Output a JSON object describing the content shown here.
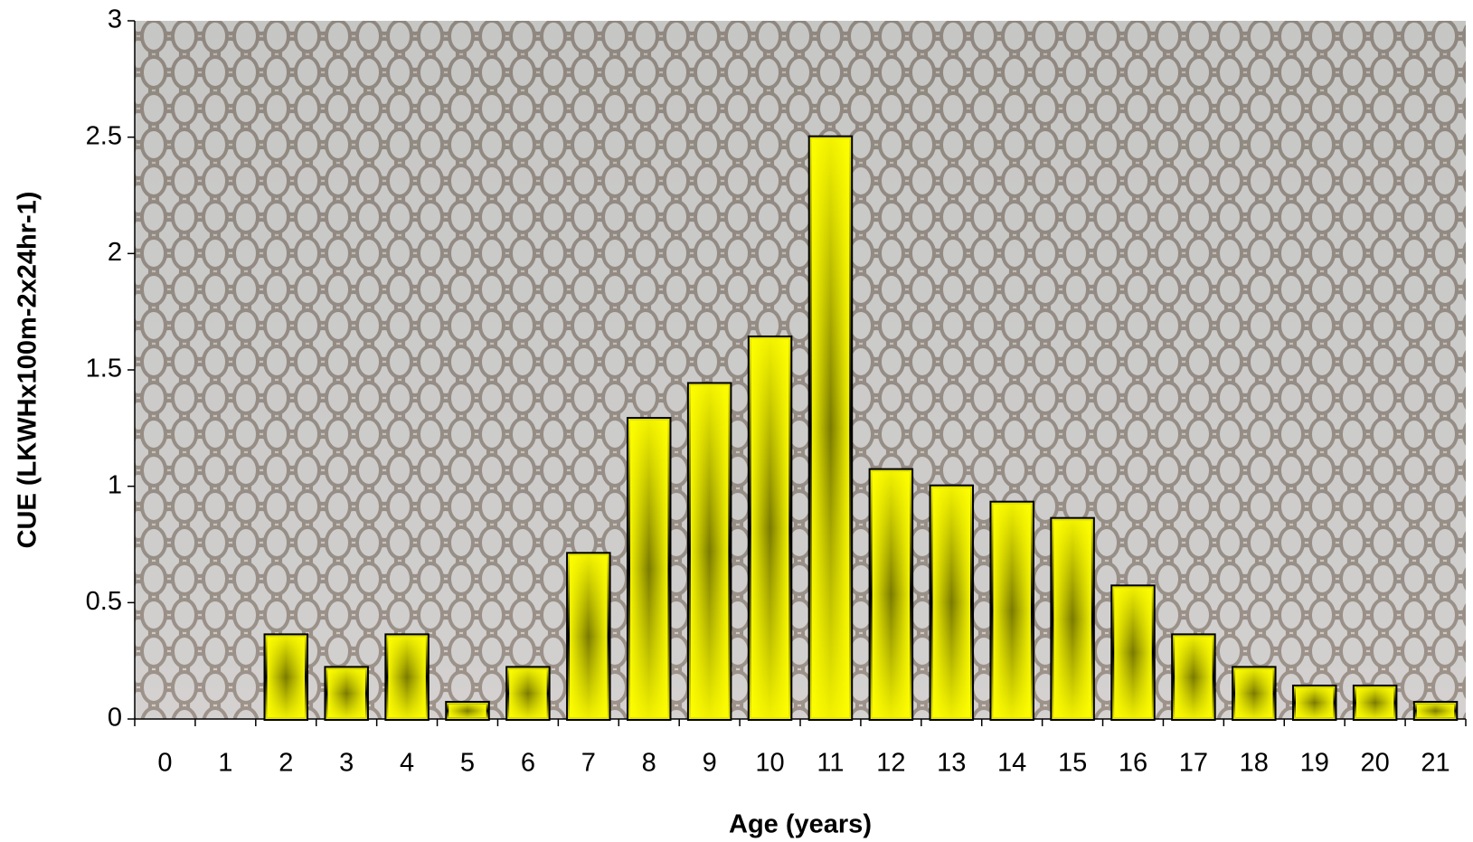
{
  "chart_data": {
    "type": "bar",
    "x_label": "Age (years)",
    "y_label": "CUE (LKWHx100m-2x24hr-1)",
    "categories": [
      "0",
      "1",
      "2",
      "3",
      "4",
      "5",
      "6",
      "7",
      "8",
      "9",
      "10",
      "11",
      "12",
      "13",
      "14",
      "15",
      "16",
      "17",
      "18",
      "19",
      "20",
      "21"
    ],
    "values": [
      0,
      0,
      0.36,
      0.22,
      0.36,
      0.07,
      0.22,
      0.71,
      1.29,
      1.44,
      1.64,
      2.5,
      1.07,
      1.0,
      0.93,
      0.86,
      0.57,
      0.36,
      0.22,
      0.14,
      0.14,
      0.07
    ],
    "color": "#ffff00",
    "ylim": [
      0,
      3
    ],
    "yticks": [
      0,
      0.5,
      1,
      1.5,
      2,
      2.5,
      3
    ]
  }
}
